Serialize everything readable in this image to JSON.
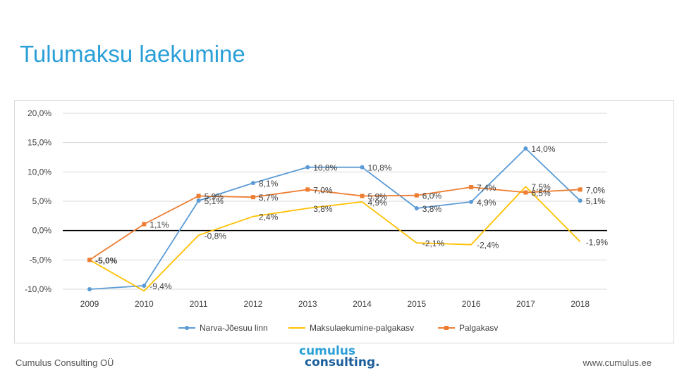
{
  "slide": {
    "title": "Tulumaksu laekumine",
    "footer_left": "Cumulus Consulting OÜ",
    "footer_right": "www.cumulus.ee",
    "logo_line1": "cumulus",
    "logo_line2": "consulting."
  },
  "chart_data": {
    "type": "line",
    "categories": [
      "2009",
      "2010",
      "2011",
      "2012",
      "2013",
      "2014",
      "2015",
      "2016",
      "2017",
      "2018"
    ],
    "ylim": [
      -10,
      20
    ],
    "yticks": [
      -10,
      -5,
      0,
      5,
      10,
      15,
      20
    ],
    "ytick_labels": [
      "-10,0%",
      "-5,0%",
      "0,0%",
      "5,0%",
      "10,0%",
      "15,0%",
      "20,0%"
    ],
    "grid": true,
    "legend_position": "bottom",
    "series": [
      {
        "name": "Narva-Jõesuu linn",
        "color": "#5b9bd5",
        "marker": "circle",
        "values": [
          -10.0,
          -9.4,
          5.1,
          8.1,
          10.8,
          10.8,
          3.8,
          4.9,
          14.0,
          5.1
        ],
        "labels": [
          null,
          "-9,4%",
          "5,1%",
          "8,1%",
          "10,8%",
          "10,8%",
          "3,8%",
          "4,9%",
          "14,0%",
          "5,1%"
        ]
      },
      {
        "name": "Maksulaekumine-palgakasv",
        "color": "#ffc000",
        "marker": "none",
        "values": [
          -5.0,
          -10.3,
          -0.8,
          2.4,
          3.8,
          4.9,
          -2.1,
          -2.4,
          7.5,
          -1.9
        ],
        "labels": [
          null,
          null,
          "-0,8%",
          "2,4%",
          "3,8%",
          "4,9%",
          "-2,1%",
          "-2,4%",
          "7,5%",
          "-1,9%"
        ]
      },
      {
        "name": "Palgakasv",
        "color": "#ed7d31",
        "marker": "square",
        "values": [
          -5.0,
          1.1,
          5.9,
          5.7,
          7.0,
          5.9,
          6.0,
          7.4,
          6.5,
          7.0
        ],
        "labels": [
          "-5,0%",
          "1,1%",
          "5,9%",
          "5,7%",
          "7,0%",
          "5,9%",
          "6,0%",
          "7,4%",
          "6,5%",
          "7,0%"
        ]
      }
    ]
  }
}
